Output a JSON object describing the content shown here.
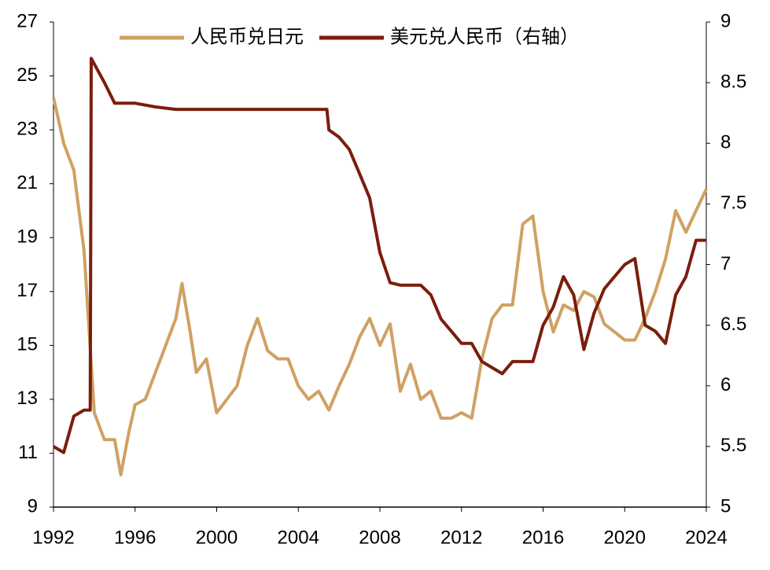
{
  "chart_data": {
    "type": "line",
    "xlim": [
      1992,
      2024
    ],
    "xticks": [
      1992,
      1996,
      2000,
      2004,
      2008,
      2012,
      2016,
      2020,
      2024
    ],
    "ylim": [
      9,
      27
    ],
    "yticks": [
      9,
      11,
      13,
      15,
      17,
      19,
      21,
      23,
      25,
      27
    ],
    "y2lim": [
      5,
      9
    ],
    "y2ticks": [
      5,
      5.5,
      6,
      6.5,
      7,
      7.5,
      8,
      8.5,
      9
    ],
    "legend": "top",
    "series": [
      {
        "name": "人民币兑日元",
        "color": "#cfa163",
        "x": [
          1992,
          1992.5,
          1993,
          1993.5,
          1994,
          1994.5,
          1995,
          1995.3,
          1995.7,
          1996,
          1996.5,
          1997,
          1997.5,
          1998,
          1998.3,
          1998.7,
          1999,
          1999.5,
          2000,
          2000.5,
          2001,
          2001.5,
          2002,
          2002.5,
          2003,
          2003.5,
          2004,
          2004.5,
          2005,
          2005.5,
          2006,
          2006.5,
          2007,
          2007.5,
          2008,
          2008.5,
          2009,
          2009.5,
          2010,
          2010.5,
          2011,
          2011.5,
          2012,
          2012.5,
          2013,
          2013.5,
          2014,
          2014.5,
          2015,
          2015.5,
          2016,
          2016.5,
          2017,
          2017.5,
          2018,
          2018.5,
          2019,
          2019.5,
          2020,
          2020.5,
          2021,
          2021.5,
          2022,
          2022.5,
          2023,
          2023.5,
          2024
        ],
        "values": [
          24.2,
          22.5,
          21.5,
          18.5,
          12.5,
          11.5,
          11.5,
          10.2,
          11.8,
          12.8,
          13.0,
          14.0,
          15.0,
          16.0,
          17.3,
          15.5,
          14.0,
          14.5,
          12.5,
          13.0,
          13.5,
          15.0,
          16.0,
          14.8,
          14.5,
          14.5,
          13.5,
          13.0,
          13.3,
          12.6,
          13.5,
          14.3,
          15.3,
          16.0,
          15.0,
          15.8,
          13.3,
          14.3,
          13.0,
          13.3,
          12.3,
          12.3,
          12.5,
          12.3,
          14.5,
          16.0,
          16.5,
          16.5,
          19.5,
          19.8,
          17.0,
          15.5,
          16.5,
          16.3,
          17.0,
          16.8,
          15.8,
          15.5,
          15.2,
          15.2,
          16.0,
          17.0,
          18.2,
          20.0,
          19.2,
          20.0,
          20.8
        ]
      },
      {
        "name": "美元兑人民币（右轴）",
        "color": "#7a1e0c",
        "axis": "y2",
        "x": [
          1992,
          1992.5,
          1993,
          1993.5,
          1993.8,
          1993.85,
          1994.5,
          1995,
          1996,
          1997,
          1998,
          2000,
          2004,
          2005.4,
          2005.5,
          2006,
          2006.5,
          2007,
          2007.5,
          2008,
          2008.5,
          2009,
          2010,
          2010.5,
          2011,
          2011.5,
          2012,
          2012.5,
          2013,
          2013.5,
          2014,
          2014.5,
          2015,
          2015.5,
          2016,
          2016.5,
          2017,
          2017.5,
          2018,
          2018.5,
          2019,
          2019.5,
          2020,
          2020.5,
          2021,
          2021.5,
          2022,
          2022.5,
          2023,
          2023.5,
          2024
        ],
        "values": [
          5.5,
          5.45,
          5.75,
          5.8,
          5.8,
          8.7,
          8.5,
          8.33,
          8.33,
          8.3,
          8.28,
          8.28,
          8.28,
          8.28,
          8.11,
          8.05,
          7.95,
          7.75,
          7.55,
          7.1,
          6.85,
          6.83,
          6.83,
          6.75,
          6.55,
          6.45,
          6.35,
          6.35,
          6.2,
          6.15,
          6.1,
          6.2,
          6.2,
          6.2,
          6.5,
          6.65,
          6.9,
          6.75,
          6.3,
          6.6,
          6.8,
          6.9,
          7.0,
          7.05,
          6.5,
          6.45,
          6.35,
          6.75,
          6.9,
          7.2,
          7.2
        ]
      }
    ]
  }
}
